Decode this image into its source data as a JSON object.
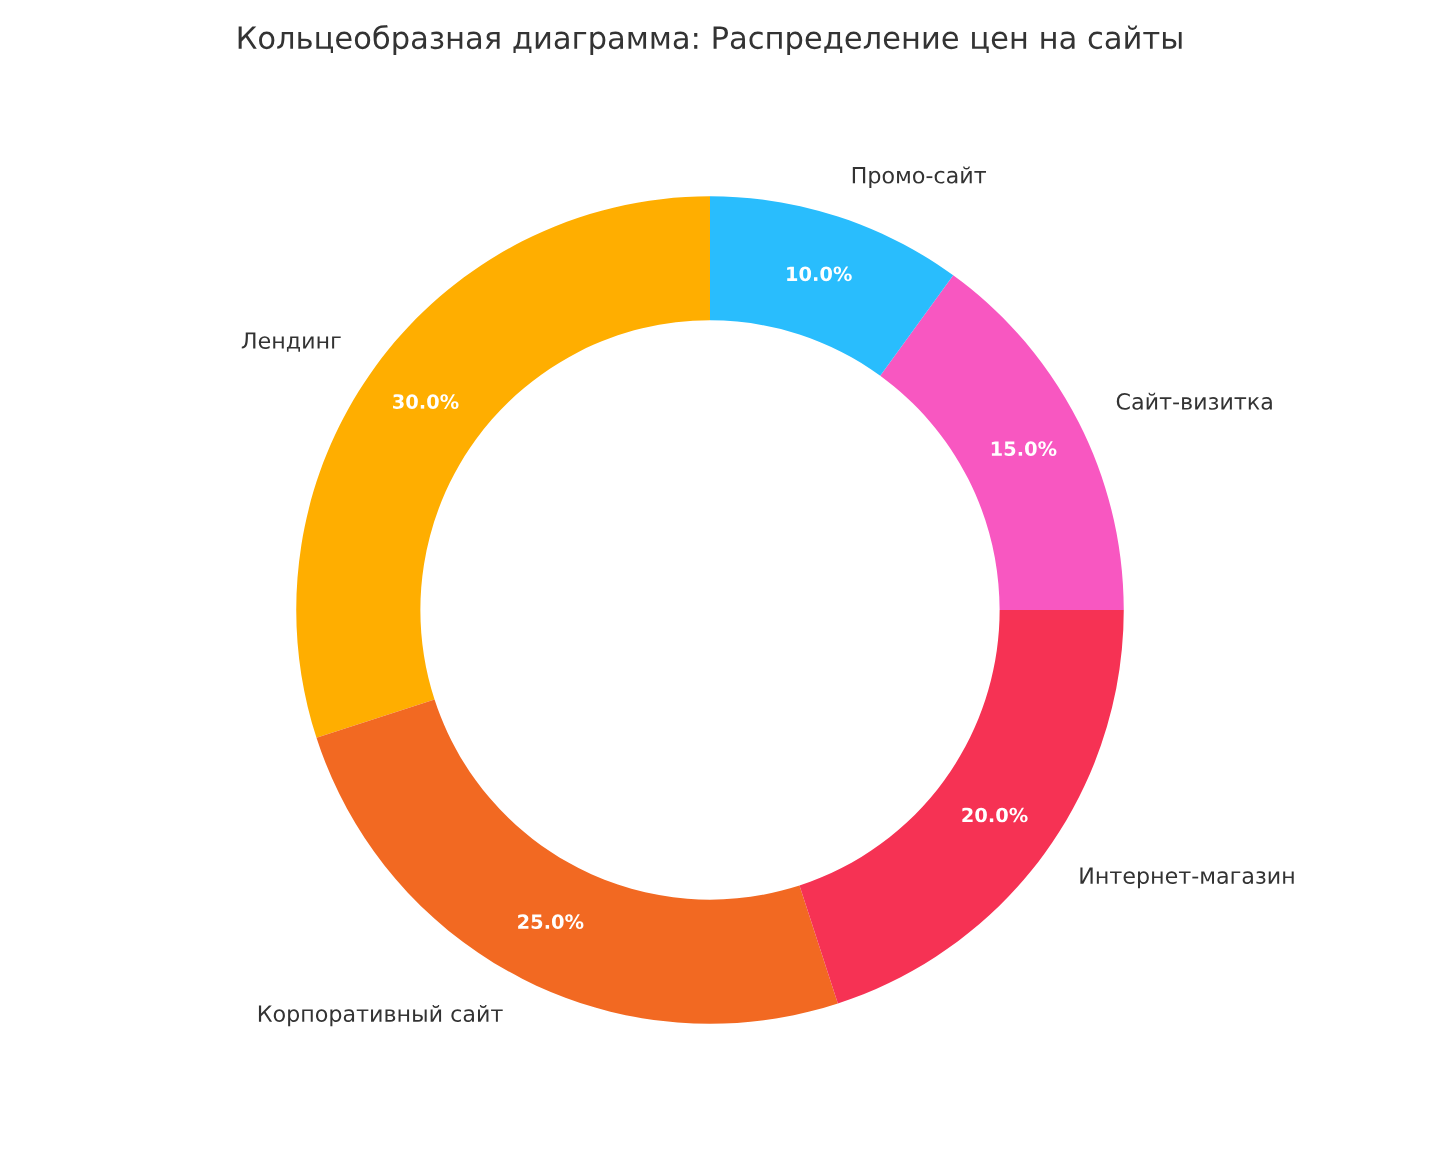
{
  "chart_data": {
    "type": "donut",
    "title": "Кольцеобразная диаграмма: Распределение цен на сайты",
    "categories": [
      "Лендинг",
      "Корпоративный сайт",
      "Интернет-магазин",
      "Сайт-визитка",
      "Промо-сайт"
    ],
    "values": [
      30,
      25,
      20,
      15,
      10
    ],
    "colors": [
      "#ffae00",
      "#f26922",
      "#f63254",
      "#f857c1",
      "#29bdfd"
    ],
    "value_labels": [
      "30.0%",
      "25.0%",
      "20.0%",
      "15.0%",
      "10.0%"
    ],
    "legend": false
  }
}
